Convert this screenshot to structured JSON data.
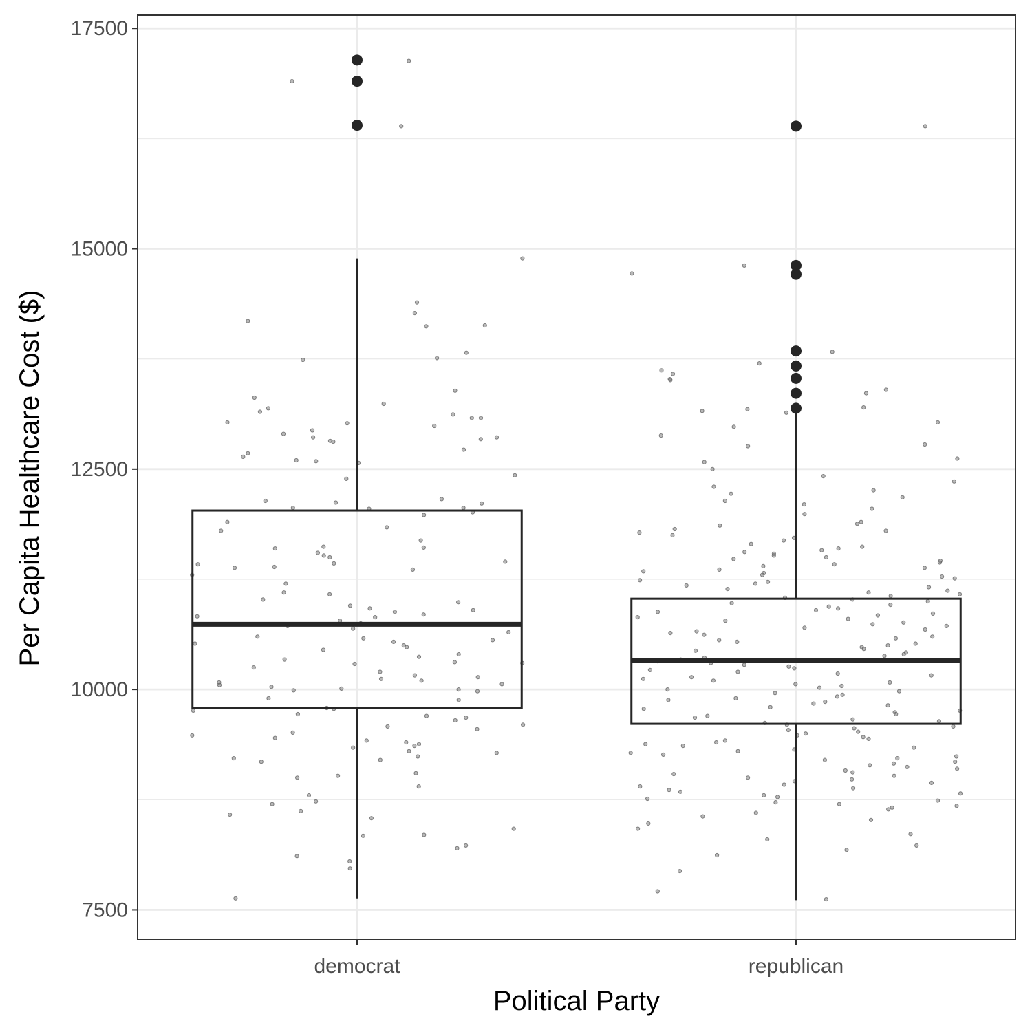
{
  "chart_data": {
    "type": "boxplot",
    "title": "",
    "xlabel": "Political Party",
    "ylabel": "Per Capita Healthcare Cost ($)",
    "ylim": [
      7160,
      17650
    ],
    "y_ticks": [
      7500,
      10000,
      12500,
      15000,
      17500
    ],
    "categories": [
      "democrat",
      "republican"
    ],
    "grid": true,
    "legend": "none",
    "colors": {
      "panel_border": "#333333",
      "grid": "#ebebeb",
      "box": "#262626",
      "outlier": "#262626",
      "jitter": "#7f7f7f"
    },
    "boxes": [
      {
        "category": "democrat",
        "whisker_low": 7630,
        "q1": 9790,
        "median": 10740,
        "q3": 12030,
        "whisker_high": 14890,
        "outliers": [
          17140,
          16900,
          16400
        ]
      },
      {
        "category": "republican",
        "whisker_low": 7610,
        "q1": 9610,
        "median": 10330,
        "q3": 11030,
        "whisker_high": 13190,
        "outliers": [
          16390,
          14810,
          14710,
          13840,
          13670,
          13530,
          13360,
          13190
        ]
      }
    ],
    "jitter_points": [
      {
        "category": "democrat",
        "values": [
          17130,
          16900,
          16390,
          14890,
          14390,
          14270,
          14180,
          14130,
          14120,
          13820,
          13760,
          13740,
          13390,
          13310,
          13240,
          13190,
          13150,
          13120,
          13080,
          13080,
          13030,
          13020,
          12990,
          12940,
          12900,
          12860,
          12860,
          12840,
          12820,
          12810,
          12720,
          12680,
          12640,
          12600,
          12590,
          12570,
          12430,
          12390,
          12160,
          12140,
          12120,
          12110,
          12060,
          12060,
          12050,
          12010,
          11980,
          11900,
          11840,
          11800,
          11690,
          11620,
          11610,
          11600,
          11550,
          11520,
          11500,
          11450,
          11430,
          11420,
          11390,
          11380,
          11360,
          11300,
          11200,
          11100,
          11080,
          11020,
          10990,
          10950,
          10920,
          10900,
          10880,
          10850,
          10830,
          10820,
          10780,
          10750,
          10740,
          10720,
          10690,
          10650,
          10600,
          10580,
          10560,
          10540,
          10520,
          10500,
          10480,
          10450,
          10400,
          10370,
          10340,
          10310,
          10300,
          10290,
          10250,
          10200,
          10160,
          10140,
          10120,
          10100,
          10080,
          10060,
          10050,
          10030,
          10010,
          10000,
          9990,
          9980,
          9900,
          9880,
          9790,
          9780,
          9760,
          9720,
          9700,
          9680,
          9650,
          9600,
          9580,
          9550,
          9510,
          9480,
          9450,
          9420,
          9400,
          9380,
          9360,
          9340,
          9300,
          9280,
          9240,
          9220,
          9200,
          9180,
          9050,
          9020,
          9000,
          8900,
          8800,
          8730,
          8700,
          8620,
          8580,
          8540,
          8420,
          8350,
          8340,
          8230,
          8200,
          8110,
          8050,
          7970,
          7630
        ]
      },
      {
        "category": "republican",
        "values": [
          16390,
          14810,
          14720,
          13830,
          13700,
          13620,
          13580,
          13520,
          13510,
          13400,
          13360,
          13200,
          13180,
          13160,
          13140,
          13030,
          12980,
          12880,
          12780,
          12760,
          12620,
          12580,
          12500,
          12420,
          12360,
          12300,
          12260,
          12220,
          12180,
          12140,
          12100,
          12050,
          11990,
          11900,
          11880,
          11860,
          11820,
          11800,
          11780,
          11750,
          11720,
          11690,
          11650,
          11620,
          11600,
          11580,
          11560,
          11540,
          11520,
          11500,
          11480,
          11460,
          11440,
          11420,
          11400,
          11380,
          11360,
          11340,
          11320,
          11300,
          11280,
          11260,
          11240,
          11220,
          11200,
          11180,
          11160,
          11140,
          11120,
          11100,
          11080,
          11060,
          11040,
          11020,
          11000,
          10980,
          10960,
          10940,
          10920,
          10900,
          10880,
          10860,
          10840,
          10820,
          10800,
          10780,
          10760,
          10740,
          10720,
          10700,
          10680,
          10660,
          10640,
          10620,
          10600,
          10580,
          10560,
          10540,
          10520,
          10500,
          10480,
          10460,
          10440,
          10420,
          10400,
          10380,
          10360,
          10340,
          10320,
          10300,
          10280,
          10260,
          10240,
          10220,
          10200,
          10180,
          10160,
          10140,
          10120,
          10100,
          10080,
          10060,
          10040,
          10020,
          10000,
          9980,
          9960,
          9940,
          9920,
          9900,
          9880,
          9860,
          9840,
          9820,
          9800,
          9780,
          9760,
          9740,
          9720,
          9700,
          9680,
          9660,
          9640,
          9620,
          9600,
          9580,
          9560,
          9540,
          9520,
          9500,
          9480,
          9460,
          9440,
          9420,
          9400,
          9380,
          9360,
          9340,
          9320,
          9300,
          9280,
          9260,
          9240,
          9220,
          9200,
          9180,
          9160,
          9140,
          9120,
          9100,
          9080,
          9060,
          9040,
          9020,
          9000,
          8980,
          8960,
          8940,
          8920,
          8900,
          8880,
          8860,
          8840,
          8820,
          8800,
          8780,
          8760,
          8740,
          8720,
          8700,
          8680,
          8660,
          8640,
          8600,
          8560,
          8520,
          8480,
          8420,
          8360,
          8300,
          8230,
          8180,
          8120,
          7940,
          7710,
          7620
        ]
      }
    ]
  }
}
